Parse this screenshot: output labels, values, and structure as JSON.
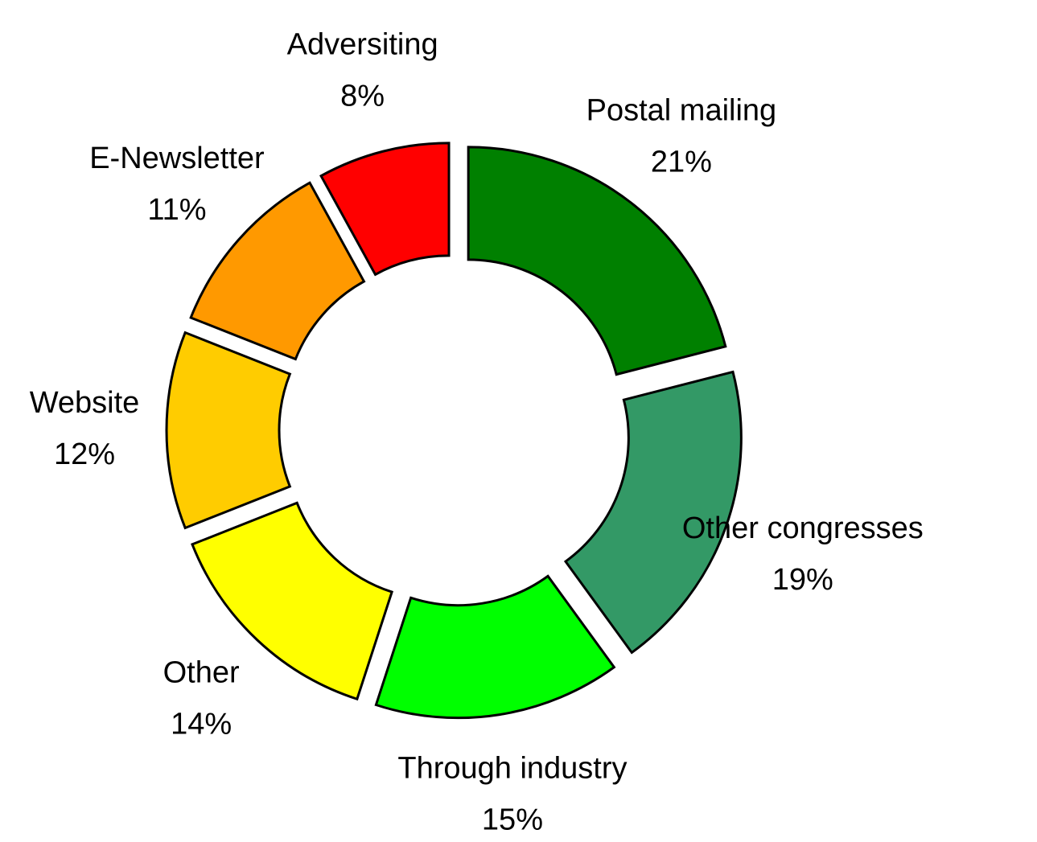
{
  "chart_data": {
    "type": "donut",
    "categories": [
      "Postal mailing",
      "Other congresses",
      "Through industry",
      "Other",
      "Website",
      "E-Newsletter",
      "Adversiting"
    ],
    "values": [
      21,
      19,
      15,
      14,
      12,
      11,
      8
    ],
    "value_labels": [
      "21%",
      "19%",
      "15%",
      "14%",
      "12%",
      "11%",
      "8%"
    ],
    "colors": [
      "#008000",
      "#339966",
      "#00ff00",
      "#ffff00",
      "#ffcc00",
      "#ff9900",
      "#ff0000"
    ]
  }
}
